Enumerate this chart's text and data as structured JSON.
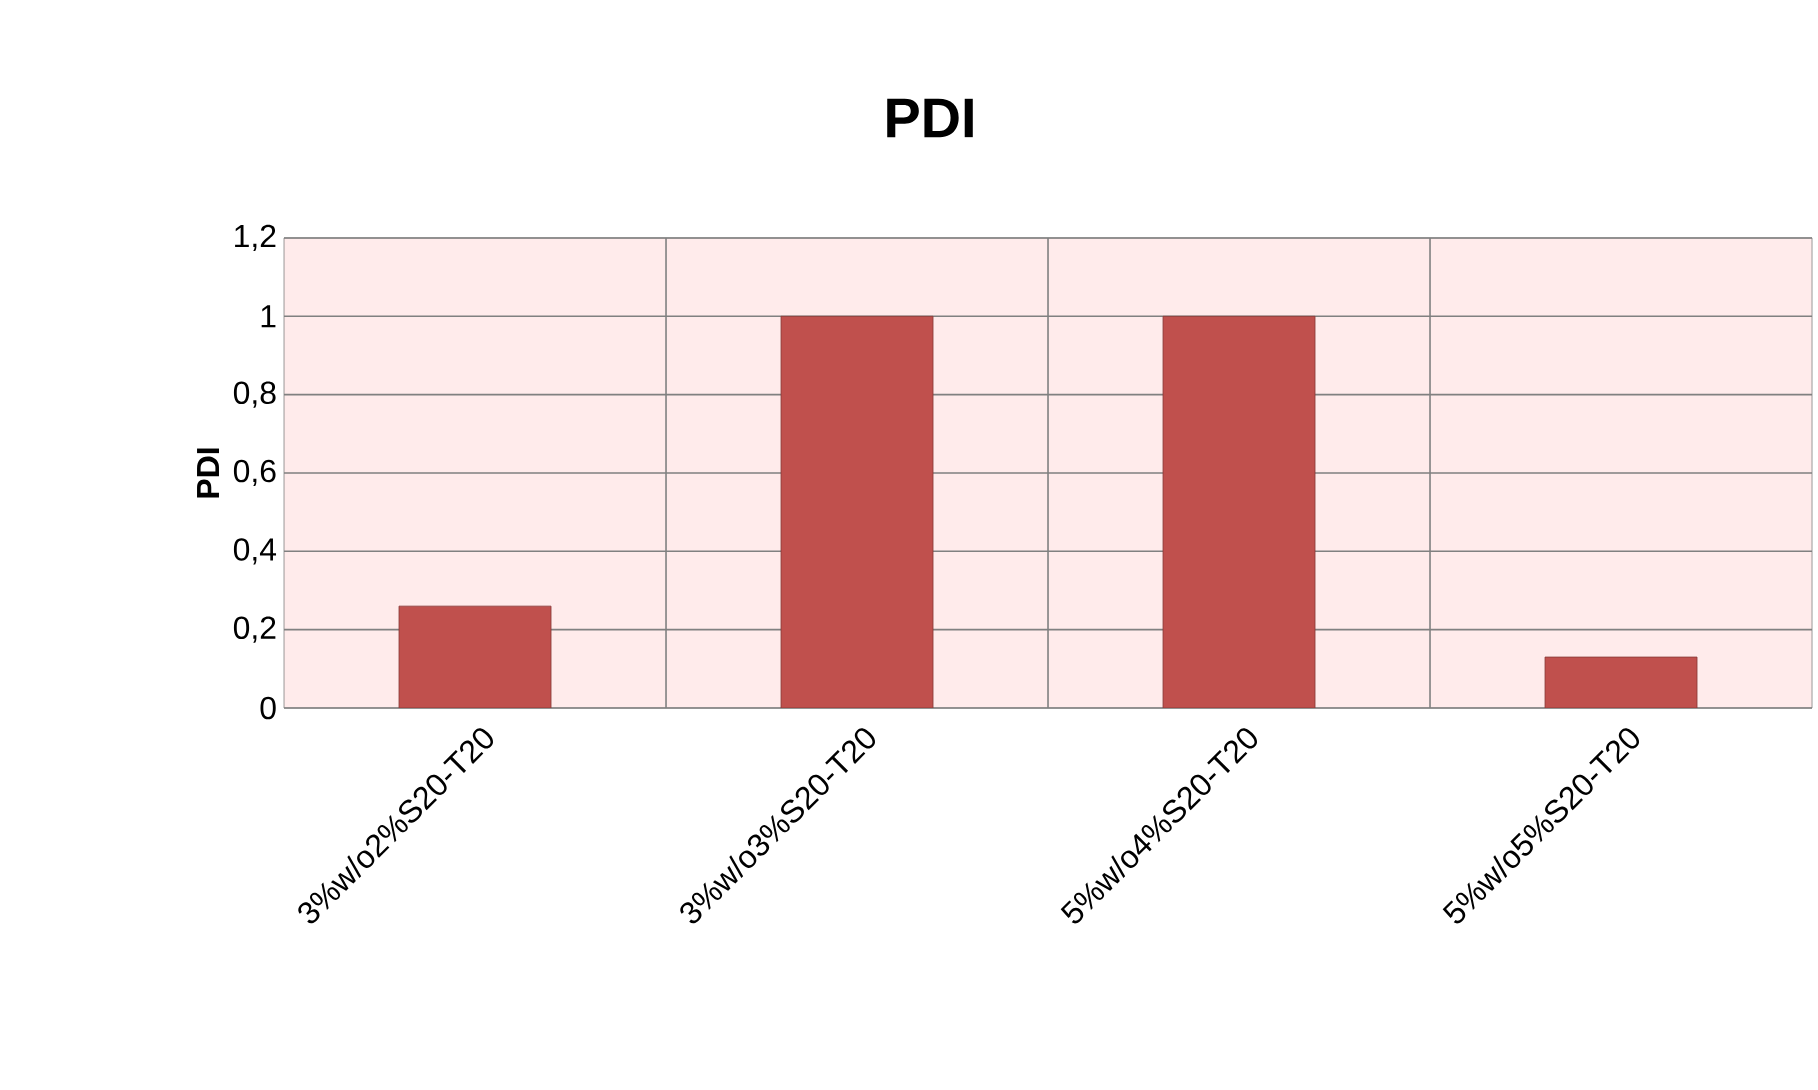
{
  "chart_data": {
    "type": "bar",
    "title": "PDI",
    "ylabel": "PDI",
    "categories": [
      "3%w/o2%S20-T20",
      "3%w/o3%S20-T20",
      "5%w/o4%S20-T20",
      "5%w/o5%S20-T20"
    ],
    "values": [
      0.26,
      1,
      1,
      0.13
    ],
    "color": "#c0504d",
    "ylim": [
      0,
      1.2
    ],
    "yticks": [
      0,
      {
        "value": 0.2,
        "label": "0,2"
      },
      {
        "value": 0.4,
        "label": "0,4"
      },
      {
        "value": 0.6,
        "label": "0,6"
      },
      {
        "value": 0.8,
        "label": "0,8"
      },
      1,
      {
        "value": 1.2,
        "label": "1,2"
      }
    ],
    "grid": true
  }
}
